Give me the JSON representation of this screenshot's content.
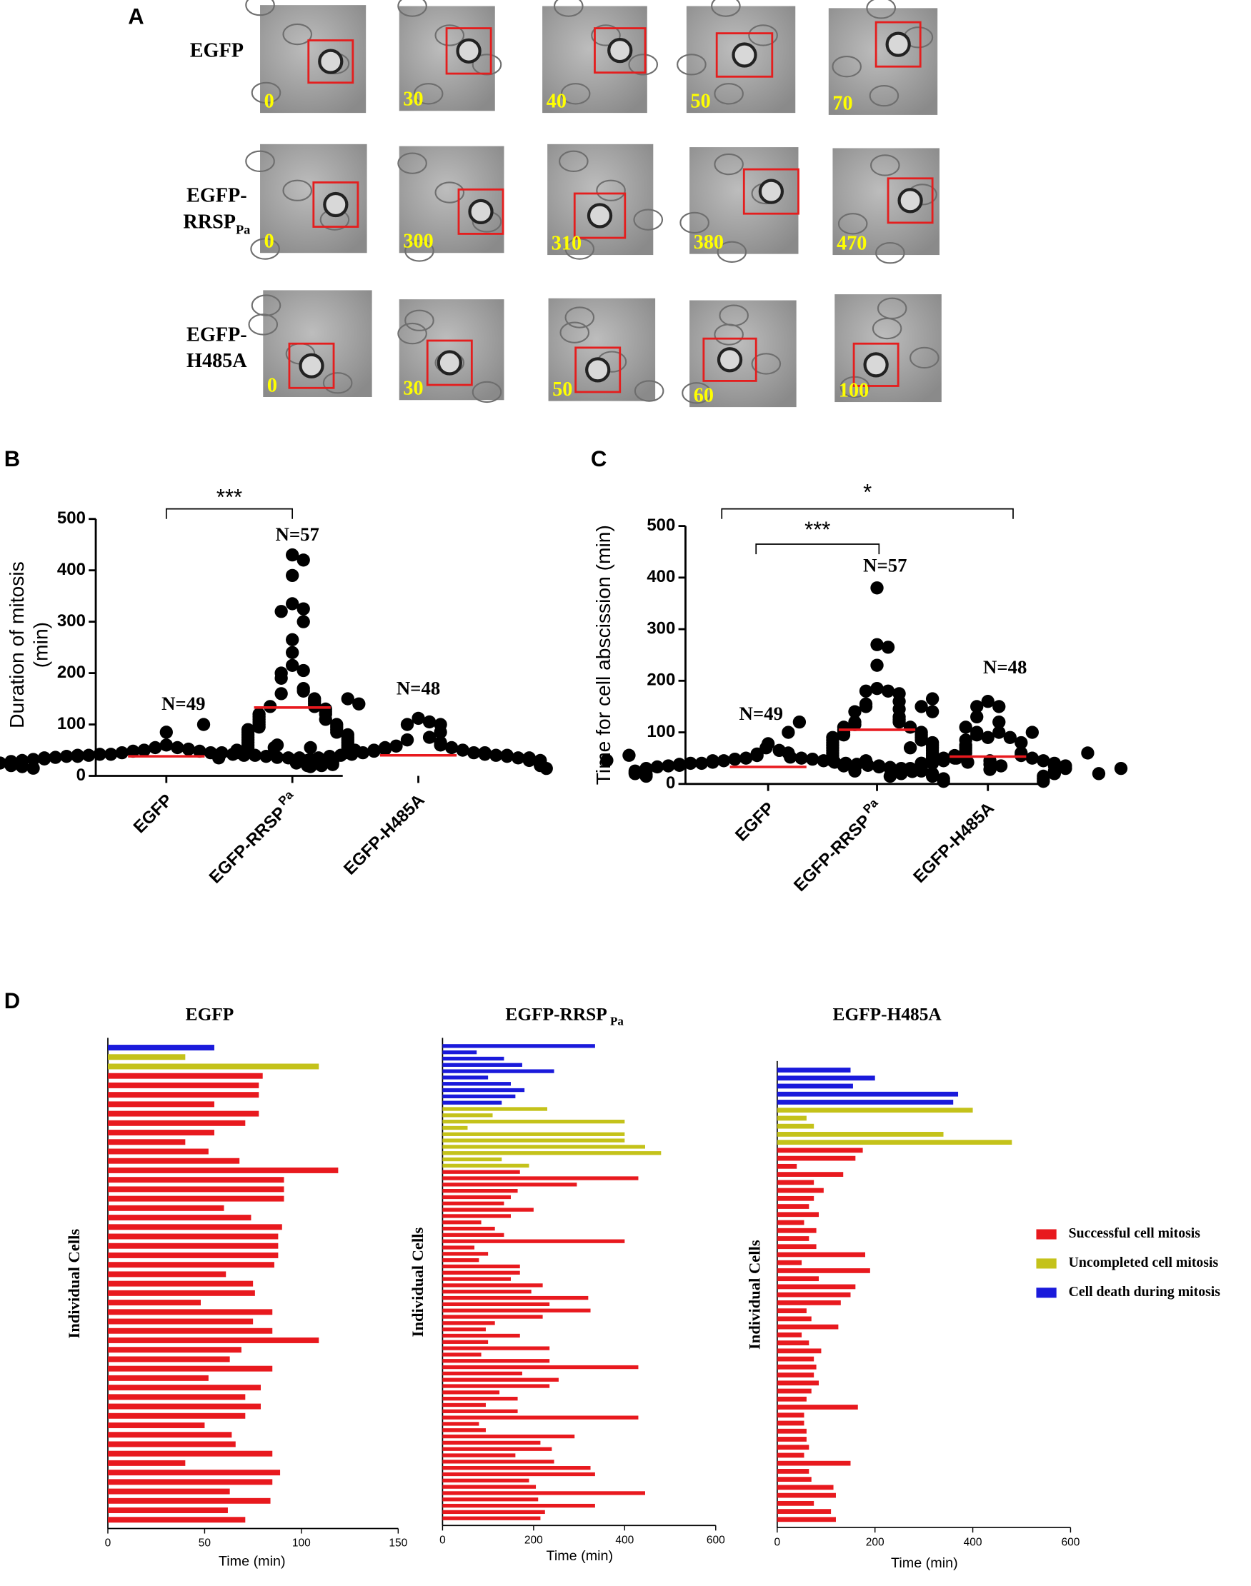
{
  "panel_labels": [
    "A",
    "B",
    "C",
    "D"
  ],
  "panel_a": {
    "rows": [
      {
        "lines": [
          "EGFP"
        ],
        "times": [
          "0",
          "30",
          "40",
          "50",
          "70"
        ]
      },
      {
        "lines": [
          "EGFP-",
          "RRSP"
        ],
        "subscript": "Pa",
        "times": [
          "0",
          "300",
          "310",
          "380",
          "470"
        ]
      },
      {
        "lines": [
          "EGFP-",
          "H485A"
        ],
        "times": [
          "0",
          "30",
          "50",
          "60",
          "100"
        ]
      }
    ]
  },
  "legend": [
    {
      "name": "Successful cell mitosis",
      "color": "#e8191e"
    },
    {
      "name": "Uncompleted cell mitosis",
      "color": "#c4c21a"
    },
    {
      "name": "Cell death during mitosis",
      "color": "#1a1adb"
    }
  ],
  "chart_data": [
    {
      "type": "scatter",
      "ylabel": [
        "Duration of mitosis",
        "(min)"
      ],
      "categories": [
        [
          "EGFP"
        ],
        [
          "EGFP-RRSP",
          "Pa"
        ],
        [
          "EGFP-H485A"
        ]
      ],
      "n_labels": [
        "N=49",
        "N=57",
        "N=48"
      ],
      "annotations": [
        "***"
      ],
      "ylim": [
        0,
        500
      ],
      "yticks": [
        0,
        100,
        200,
        300,
        400,
        500
      ],
      "color": "#000000",
      "median_color": "#e8191e",
      "medians": [
        38,
        133,
        40
      ],
      "groups": [
        [
          85,
          60,
          55,
          55,
          52,
          50,
          48,
          48,
          45,
          45,
          45,
          42,
          42,
          42,
          40,
          40,
          40,
          40,
          38,
          38,
          38,
          36,
          36,
          35,
          35,
          35,
          33,
          33,
          32,
          32,
          30,
          30,
          30,
          28,
          28,
          28,
          25,
          25,
          25,
          22,
          22,
          20,
          20,
          18,
          18,
          15,
          55,
          50,
          60
        ],
        [
          430,
          420,
          390,
          335,
          325,
          320,
          300,
          265,
          240,
          215,
          205,
          200,
          190,
          170,
          165,
          160,
          150,
          145,
          140,
          135,
          135,
          130,
          125,
          120,
          120,
          115,
          110,
          110,
          105,
          100,
          100,
          95,
          95,
          90,
          90,
          85,
          85,
          80,
          80,
          75,
          75,
          70,
          70,
          65,
          65,
          60,
          60,
          55,
          55,
          50,
          50,
          50,
          45,
          45,
          150,
          100,
          140
        ],
        [
          112,
          105,
          100,
          100,
          85,
          75,
          70,
          65,
          60,
          58,
          55,
          55,
          52,
          50,
          50,
          48,
          45,
          45,
          45,
          42,
          42,
          40,
          40,
          40,
          38,
          38,
          36,
          35,
          35,
          35,
          33,
          32,
          30,
          30,
          30,
          28,
          28,
          25,
          25,
          22,
          22,
          20,
          20,
          45,
          55,
          40,
          35,
          30
        ]
      ]
    },
    {
      "type": "scatter",
      "ylabel": [
        "Time for cell abscission (min)"
      ],
      "categories": [
        [
          "EGFP"
        ],
        [
          "EGFP-RRSP",
          "Pa"
        ],
        [
          "EGFP-H485A"
        ]
      ],
      "n_labels": [
        "N=49",
        "N=57",
        "N=48"
      ],
      "annotations": [
        "***",
        "*"
      ],
      "ylim": [
        0,
        500
      ],
      "yticks": [
        0,
        100,
        200,
        300,
        400,
        500
      ],
      "color": "#000000",
      "median_color": "#e8191e",
      "medians": [
        33,
        105,
        53
      ],
      "groups": [
        [
          78,
          65,
          58,
          55,
          52,
          50,
          50,
          48,
          48,
          45,
          45,
          45,
          42,
          42,
          40,
          40,
          40,
          38,
          38,
          36,
          36,
          35,
          35,
          33,
          33,
          32,
          30,
          30,
          30,
          28,
          28,
          26,
          25,
          25,
          24,
          22,
          22,
          20,
          20,
          18,
          15,
          15,
          42,
          38,
          35,
          30,
          28,
          45,
          50
        ],
        [
          380,
          270,
          265,
          230,
          185,
          180,
          180,
          175,
          160,
          155,
          150,
          145,
          140,
          130,
          125,
          120,
          120,
          115,
          110,
          110,
          105,
          100,
          100,
          95,
          95,
          90,
          90,
          85,
          85,
          80,
          80,
          75,
          75,
          70,
          70,
          65,
          65,
          60,
          60,
          55,
          55,
          50,
          50,
          45,
          40,
          35,
          30,
          25,
          140,
          100,
          60,
          150,
          110,
          90,
          120,
          70,
          165
        ],
        [
          160,
          150,
          150,
          130,
          120,
          100,
          100,
          95,
          90,
          85,
          80,
          75,
          70,
          65,
          60,
          60,
          55,
          55,
          50,
          50,
          50,
          45,
          45,
          45,
          40,
          40,
          40,
          35,
          35,
          35,
          30,
          30,
          25,
          25,
          20,
          20,
          15,
          15,
          10,
          10,
          5,
          5,
          60,
          70,
          45,
          30,
          20,
          100
        ]
      ]
    },
    {
      "type": "hbar",
      "title": [
        "EGFP"
      ],
      "xlabel": "Time (min)",
      "ylabel": "Individual Cells",
      "xlim": [
        0,
        150
      ],
      "xticks": [
        0,
        50,
        100,
        150
      ],
      "series": [
        {
          "color": "#1a1adb",
          "values": [
            55
          ]
        },
        {
          "color": "#c4c21a",
          "values": [
            40,
            109
          ]
        },
        {
          "color": "#e8191e",
          "values": [
            80,
            78,
            78,
            55,
            78,
            71,
            55,
            40,
            52,
            68,
            119,
            91,
            91,
            91,
            60,
            74,
            90,
            88,
            88,
            88,
            86,
            61,
            75,
            76,
            48,
            85,
            75,
            85,
            109,
            69,
            63,
            85,
            52,
            79,
            71,
            79,
            71,
            50,
            64,
            66,
            85,
            40,
            89,
            85,
            63,
            84,
            62,
            71
          ]
        }
      ]
    },
    {
      "type": "hbar",
      "title": [
        "EGFP-RRSP",
        "Pa"
      ],
      "xlabel": "Time (min)",
      "ylabel": "Individual Cells",
      "xlim": [
        0,
        600
      ],
      "xticks": [
        0,
        200,
        400,
        600
      ],
      "series": [
        {
          "color": "#1a1adb",
          "values": [
            335,
            75,
            135,
            175,
            245,
            100,
            150,
            180,
            160,
            130
          ]
        },
        {
          "color": "#c4c21a",
          "values": [
            230,
            110,
            400,
            55,
            400,
            400,
            445,
            480,
            130,
            190
          ]
        },
        {
          "color": "#e8191e",
          "values": [
            170,
            430,
            295,
            165,
            150,
            135,
            200,
            150,
            85,
            115,
            135,
            400,
            70,
            100,
            80,
            170,
            170,
            150,
            220,
            195,
            320,
            235,
            325,
            220,
            115,
            95,
            170,
            100,
            235,
            85,
            235,
            430,
            175,
            255,
            235,
            125,
            165,
            95,
            165,
            430,
            80,
            95,
            290,
            215,
            240,
            160,
            245,
            325,
            335,
            190,
            205,
            445,
            210,
            335,
            225,
            215
          ]
        }
      ]
    },
    {
      "type": "hbar",
      "title": [
        "EGFP-H485A"
      ],
      "xlabel": "Time (min)",
      "ylabel": "Individual Cells",
      "xlim": [
        0,
        600
      ],
      "xticks": [
        0,
        200,
        400,
        600
      ],
      "series": [
        {
          "color": "#1a1adb",
          "values": [
            150,
            200,
            155,
            370,
            360
          ]
        },
        {
          "color": "#c4c21a",
          "values": [
            400,
            60,
            75,
            340,
            480
          ]
        },
        {
          "color": "#e8191e",
          "values": [
            175,
            160,
            40,
            135,
            75,
            95,
            75,
            65,
            85,
            55,
            80,
            65,
            80,
            180,
            50,
            190,
            85,
            160,
            150,
            130,
            60,
            70,
            125,
            50,
            65,
            90,
            75,
            80,
            75,
            85,
            70,
            60,
            165,
            55,
            55,
            60,
            60,
            65,
            55,
            150,
            65,
            70,
            115,
            120,
            75,
            110,
            120
          ]
        }
      ]
    }
  ]
}
